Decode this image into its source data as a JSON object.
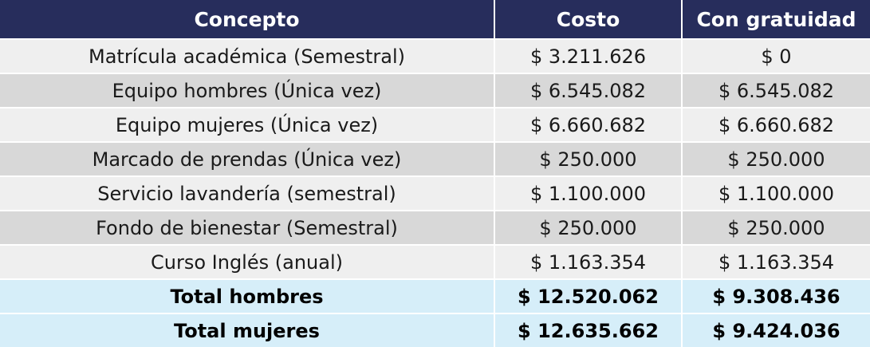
{
  "header": {
    "concepto": "Concepto",
    "costo": "Costo",
    "con_gratuidad": "Con gratuidad"
  },
  "rows": [
    {
      "concepto": "Matrícula académica (Semestral)",
      "costo": "$ 3.211.626",
      "gratuidad": "$ 0"
    },
    {
      "concepto": "Equipo hombres (Única vez)",
      "costo": "$ 6.545.082",
      "gratuidad": "$ 6.545.082"
    },
    {
      "concepto": "Equipo mujeres (Única vez)",
      "costo": "$ 6.660.682",
      "gratuidad": "$ 6.660.682"
    },
    {
      "concepto": "Marcado de prendas (Única vez)",
      "costo": "$ 250.000",
      "gratuidad": "$ 250.000"
    },
    {
      "concepto": "Servicio lavandería (semestral)",
      "costo": "$ 1.100.000",
      "gratuidad": "$ 1.100.000"
    },
    {
      "concepto": "Fondo de bienestar (Semestral)",
      "costo": "$ 250.000",
      "gratuidad": "$ 250.000"
    },
    {
      "concepto": "Curso Inglés (anual)",
      "costo": "$ 1.163.354",
      "gratuidad": "$ 1.163.354"
    }
  ],
  "totals": [
    {
      "concepto": "Total hombres",
      "costo": "$ 12.520.062",
      "gratuidad": "$ 9.308.436"
    },
    {
      "concepto": "Total mujeres",
      "costo": "$ 12.635.662",
      "gratuidad": "$ 9.424.036"
    }
  ],
  "colors": {
    "header_bg": "#272d5c",
    "row_light": "#efefef",
    "row_dark": "#d8d8d8",
    "total_bg": "#d6eef9"
  }
}
